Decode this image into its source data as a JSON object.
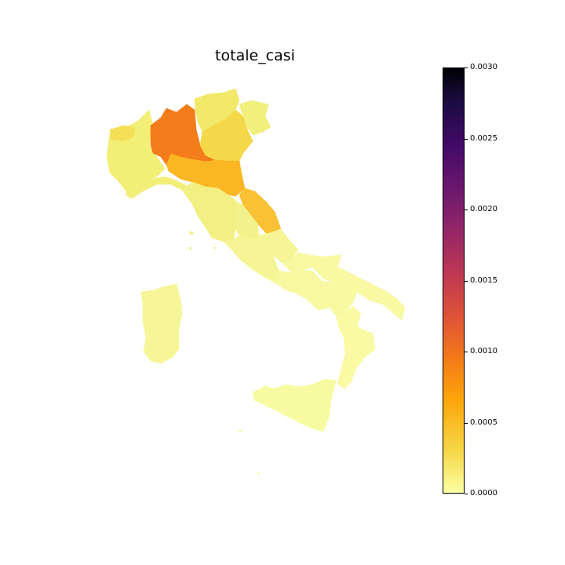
{
  "title": "totale_casi",
  "colorbar": {
    "colormap": "inferno_r",
    "min": 0.0,
    "max": 0.003,
    "ticks": [
      "0.0030",
      "0.0025",
      "0.0020",
      "0.0015",
      "0.0010",
      "0.0005",
      "0.0000"
    ]
  },
  "regions": [
    {
      "name": "Lombardia",
      "value": 0.00105,
      "color": "#f47c1a"
    },
    {
      "name": "Emilia-Romagna",
      "value": 0.00055,
      "color": "#fbb624"
    },
    {
      "name": "Marche",
      "value": 0.0004,
      "color": "#f9c133"
    },
    {
      "name": "Veneto",
      "value": 0.00022,
      "color": "#f5d84a"
    },
    {
      "name": "Piemonte",
      "value": 0.0001,
      "color": "#f1ef76"
    },
    {
      "name": "Trentino-Alto Adige",
      "value": 0.00015,
      "color": "#f2e86a"
    },
    {
      "name": "Friuli-Venezia Giulia",
      "value": 8e-05,
      "color": "#f1f07c"
    },
    {
      "name": "Valle d'Aosta",
      "value": 0.0002,
      "color": "#f4df57"
    },
    {
      "name": "Liguria",
      "value": 0.0001,
      "color": "#f2ee78"
    },
    {
      "name": "Toscana",
      "value": 0.0001,
      "color": "#f2f083"
    },
    {
      "name": "Umbria",
      "value": 8e-05,
      "color": "#f3f18c"
    },
    {
      "name": "Lazio",
      "value": 5e-05,
      "color": "#f5f595"
    },
    {
      "name": "Abruzzo",
      "value": 5e-05,
      "color": "#f5f596"
    },
    {
      "name": "Molise",
      "value": 3e-05,
      "color": "#f7f8a0"
    },
    {
      "name": "Campania",
      "value": 3e-05,
      "color": "#f7f89f"
    },
    {
      "name": "Puglia",
      "value": 2e-05,
      "color": "#f8f9a2"
    },
    {
      "name": "Basilicata",
      "value": 2e-05,
      "color": "#f8f9a1"
    },
    {
      "name": "Calabria",
      "value": 1e-05,
      "color": "#f9faa3"
    },
    {
      "name": "Sicilia",
      "value": 1e-05,
      "color": "#f8faa2"
    },
    {
      "name": "Sardegna",
      "value": 3e-05,
      "color": "#f6f698"
    }
  ]
}
